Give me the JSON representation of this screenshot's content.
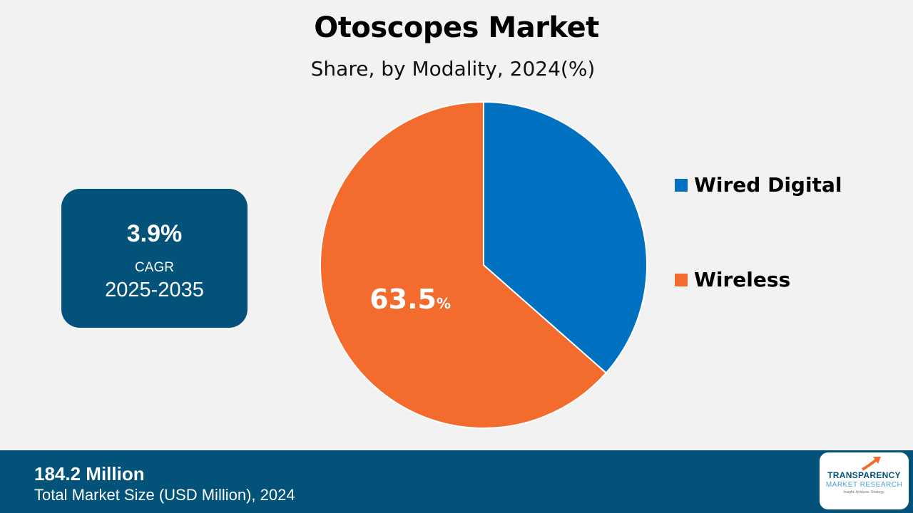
{
  "title": "Otoscopes Market",
  "subtitle": "Share, by Modality, 2024(%)",
  "cagr": {
    "value": "3.9%",
    "label": "CAGR",
    "period": "2025-2035"
  },
  "footer": {
    "value": "184.2 Million",
    "label": "Total Market Size (USD Million), 2024"
  },
  "logo": {
    "line1": "TRANSPARENCY",
    "line2": "MARKET RESEARCH",
    "tagline": "Insight. Analysis. Strategy."
  },
  "chart_data": {
    "type": "pie",
    "slices": [
      {
        "label": "Wired Digital",
        "value": 36.5,
        "color": "#0070c0"
      },
      {
        "label": "Wireless",
        "value": 63.5,
        "color": "#f36b2d"
      }
    ],
    "data_labels": [
      {
        "slice": "Wireless",
        "number": "63.5",
        "unit": "%"
      }
    ],
    "legend_placement": "right"
  }
}
